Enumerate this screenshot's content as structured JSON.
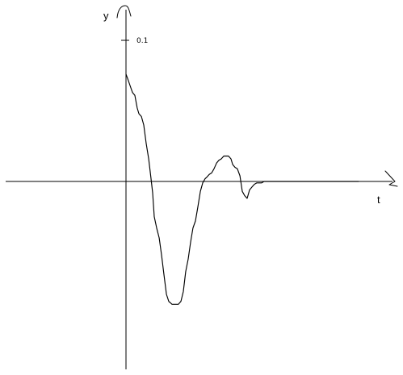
{
  "chart_data": {
    "type": "line",
    "title": "",
    "xlabel": "t",
    "ylabel": "y",
    "y_tick_labels": [
      "0.1"
    ],
    "y_ticks": [
      0.1
    ],
    "grid": false,
    "legend": "none",
    "xlim": [
      -1.0,
      2.2
    ],
    "ylim": [
      -0.236,
      0.215
    ],
    "color": "#000000",
    "series": [
      {
        "x": [
          0.0,
          0.013,
          0.032,
          0.052,
          0.071,
          0.09,
          0.103,
          0.123,
          0.142,
          0.161,
          0.181,
          0.2,
          0.213,
          0.226,
          0.245,
          0.265,
          0.284,
          0.303,
          0.323,
          0.342,
          0.355,
          0.368,
          0.381,
          0.4,
          0.419,
          0.439,
          0.458,
          0.477,
          0.497,
          0.516,
          0.535,
          0.555,
          0.574,
          0.594,
          0.613,
          0.632,
          0.645,
          0.665,
          0.684,
          0.703,
          0.723,
          0.742,
          0.761,
          0.781,
          0.8,
          0.819,
          0.839,
          0.852,
          0.871,
          0.89,
          0.91,
          0.929,
          0.948,
          0.968,
          0.987,
          1.006,
          1.026,
          1.045,
          1.065,
          1.084,
          1.103,
          1.123,
          1.142,
          1.161,
          1.181,
          1.2,
          1.219,
          1.239,
          1.258,
          1.277,
          1.297,
          1.316,
          1.335,
          1.355,
          1.374,
          1.394,
          1.413,
          1.432,
          1.452,
          1.471,
          1.49,
          1.51,
          1.529,
          1.548,
          1.568,
          1.587,
          1.606,
          1.626,
          1.645,
          1.665,
          1.684,
          1.703,
          1.723,
          1.742,
          1.761,
          1.781,
          1.8,
          1.819,
          1.839,
          1.858
        ],
        "y": [
          0.076,
          0.073,
          0.068,
          0.063,
          0.061,
          0.052,
          0.048,
          0.046,
          0.04,
          0.027,
          0.016,
          0.002,
          -0.008,
          -0.025,
          -0.033,
          -0.04,
          -0.052,
          -0.066,
          -0.08,
          -0.085,
          -0.086,
          -0.087,
          -0.087,
          -0.087,
          -0.087,
          -0.085,
          -0.078,
          -0.064,
          -0.055,
          -0.043,
          -0.033,
          -0.028,
          -0.018,
          -0.007,
          -0.001,
          0.002,
          0.003,
          0.005,
          0.006,
          0.009,
          0.013,
          0.015,
          0.016,
          0.018,
          0.018,
          0.018,
          0.016,
          0.012,
          0.01,
          0.009,
          0.004,
          -0.007,
          -0.01,
          -0.012,
          -0.006,
          -0.004,
          -0.002,
          -0.001,
          -0.001,
          -0.001,
          0.0,
          0.0,
          0.0,
          0.0,
          0.0,
          0.0,
          0.0,
          0.0,
          0.0,
          0.0,
          0.0,
          0.0,
          0.0,
          0.0,
          0.0,
          0.0,
          0.0,
          0.0,
          0.0,
          0.0,
          0.0,
          0.0,
          0.0,
          0.0,
          0.0,
          0.0,
          0.0,
          0.0,
          0.0,
          0.0,
          0.0,
          0.0,
          0.0,
          0.0,
          0.0,
          0.0,
          0.0,
          0.0,
          0.0,
          0.0
        ]
      }
    ]
  }
}
